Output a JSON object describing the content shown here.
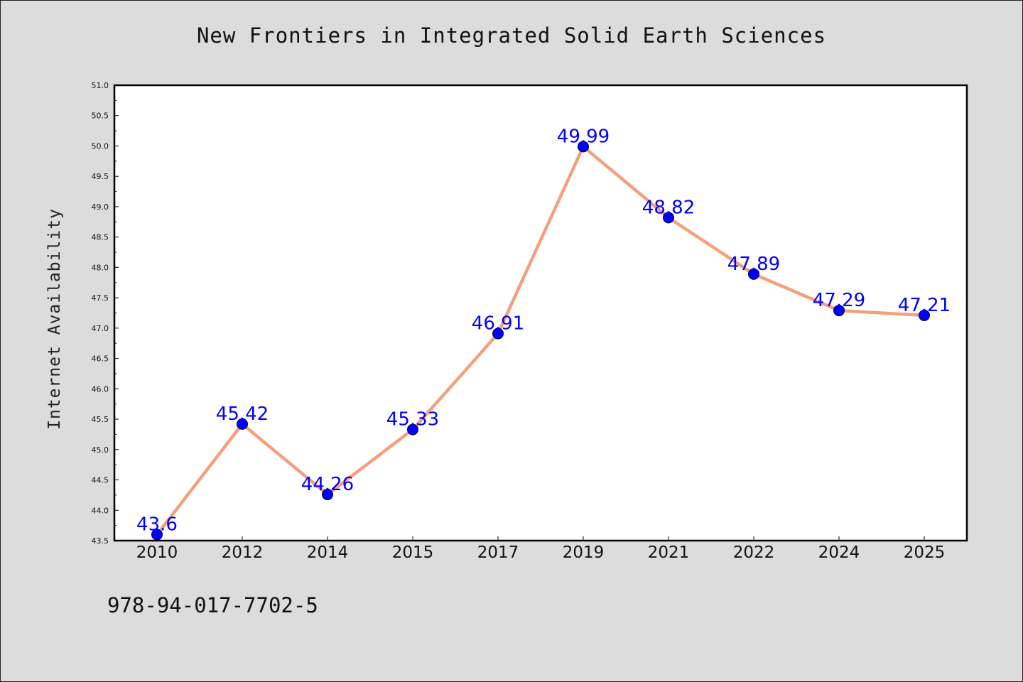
{
  "page": {
    "isbn": "978-94-017-7702-5"
  },
  "chart_data": {
    "type": "line",
    "title": "New Frontiers in Integrated Solid Earth Sciences",
    "xlabel": "",
    "ylabel": "Internet Availability",
    "categories": [
      "2010",
      "2012",
      "2014",
      "2015",
      "2017",
      "2019",
      "2021",
      "2022",
      "2024",
      "2025"
    ],
    "series": [
      {
        "values": [
          43.6,
          45.42,
          44.26,
          45.33,
          46.91,
          49.99,
          48.82,
          47.89,
          47.29,
          47.21
        ],
        "data_labels": [
          "43.6",
          "45.42",
          "44.26",
          "45.33",
          "46.91",
          "49.99",
          "48.82",
          "47.89",
          "47.29",
          "47.21"
        ]
      }
    ],
    "ylim": [
      43.5,
      51.0
    ],
    "yticks": [
      "43.5",
      "44.0",
      "44.5",
      "45.0",
      "45.5",
      "46.0",
      "46.5",
      "47.0",
      "47.5",
      "48.0",
      "48.5",
      "49.0",
      "49.5",
      "50.0",
      "50.5",
      "51.0"
    ],
    "grid": false,
    "legend": "none",
    "colors": {
      "line": "#f4a07e",
      "marker": "#0000ff",
      "data_label": "#0000ff",
      "background": "#dcdcdc",
      "plot_area": "#ffffff"
    }
  }
}
